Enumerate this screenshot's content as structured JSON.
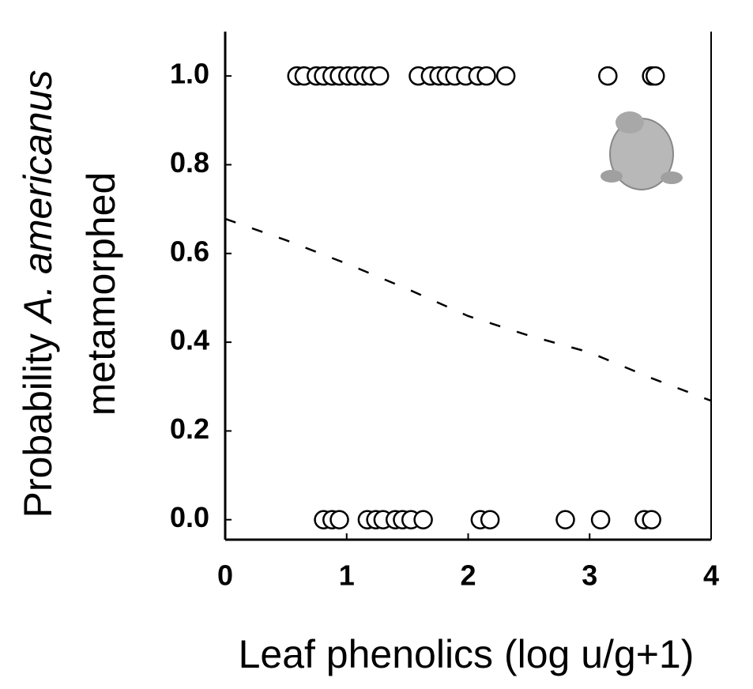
{
  "chart_data": {
    "type": "scatter",
    "xlabel": "Leaf phenolics (log u/g+1)",
    "ylabel": {
      "line1": "Probability",
      "line1_italic": "A. americanus",
      "line2": "metamorphed"
    },
    "xlim": [
      0,
      4
    ],
    "xticks": [
      0,
      1,
      2,
      3,
      4
    ],
    "ylim": [
      -0.045,
      1.1
    ],
    "yticks": [
      {
        "value": 0,
        "label": "0.0"
      },
      0.2,
      0.4,
      0.6,
      0.8,
      {
        "value": 1,
        "label": "1.0"
      }
    ],
    "points": {
      "x": [
        0.59,
        0.65,
        0.75,
        0.81,
        0.88,
        0.94,
        1.01,
        1.07,
        1.14,
        1.2,
        1.27,
        1.59,
        1.69,
        1.76,
        1.82,
        1.89,
        1.98,
        2.08,
        2.15,
        2.31,
        3.15,
        3.51,
        3.54,
        0.81,
        0.88,
        0.94,
        1.17,
        1.24,
        1.3,
        1.4,
        1.46,
        1.53,
        1.63,
        2.1,
        2.18,
        2.8,
        3.09,
        3.45,
        3.51
      ],
      "y": [
        1,
        1,
        1,
        1,
        1,
        1,
        1,
        1,
        1,
        1,
        1,
        1,
        1,
        1,
        1,
        1,
        1,
        1,
        1,
        1,
        1,
        1,
        1,
        0,
        0,
        0,
        0,
        0,
        0,
        0,
        0,
        0,
        0,
        0,
        0,
        0,
        0,
        0,
        0
      ]
    },
    "fit": {
      "x": [
        0,
        0.5,
        1,
        1.5,
        2,
        2.5,
        3,
        3.5,
        4
      ],
      "y": [
        0.678,
        0.63,
        0.577,
        0.52,
        0.459,
        0.415,
        0.377,
        0.32,
        0.268
      ]
    }
  }
}
